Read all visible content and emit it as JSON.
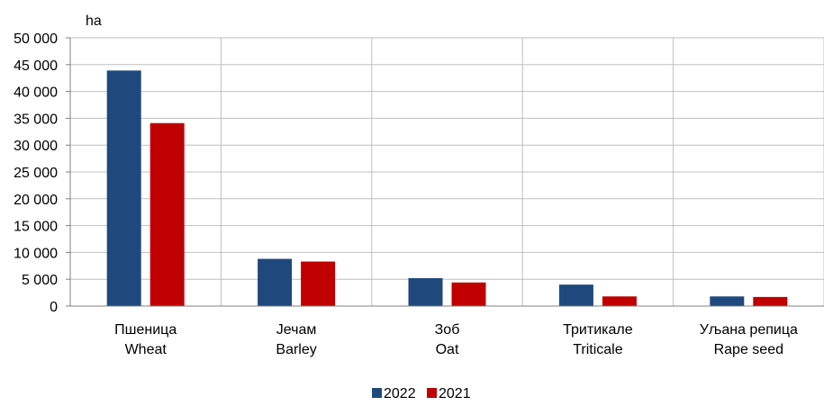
{
  "chart_data": {
    "type": "bar",
    "ylabel": "ha",
    "ylim": [
      0,
      50000
    ],
    "ytick_step": 5000,
    "ytick_labels": [
      "0",
      "5 000",
      "10 000",
      "15 000",
      "20 000",
      "25 000",
      "30 000",
      "35 000",
      "40 000",
      "45 000",
      "50 000"
    ],
    "categories": [
      {
        "line1": "Пшеница",
        "line2": "Wheat"
      },
      {
        "line1": "Јечам",
        "line2": "Barley"
      },
      {
        "line1": "Зоб",
        "line2": "Oat"
      },
      {
        "line1": "Тритикале",
        "line2": "Triticale"
      },
      {
        "line1": "Уљана репица",
        "line2": "Rape seed"
      }
    ],
    "series": [
      {
        "name": "2022",
        "color": "#1F497D",
        "values": [
          43900,
          8800,
          5200,
          4000,
          1800
        ]
      },
      {
        "name": "2021",
        "color": "#C00000",
        "values": [
          34100,
          8300,
          4400,
          1800,
          1700
        ]
      }
    ],
    "grid": {
      "horizontal": true,
      "vertical": true,
      "color": "#BFBFBF"
    },
    "legend": "bottom-center"
  }
}
